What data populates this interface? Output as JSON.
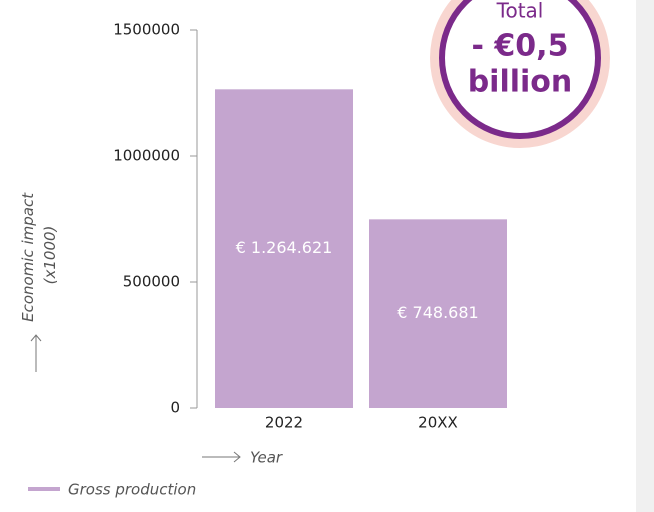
{
  "chart_data": {
    "type": "bar",
    "categories": [
      "2022",
      "20XX"
    ],
    "series": [
      {
        "name": "Gross production",
        "color": "#c4a5cf",
        "values": [
          1264621,
          748681
        ],
        "value_labels": [
          "€ 1.264.621",
          "€ 748.681"
        ]
      }
    ],
    "ylim": [
      0,
      1500000
    ],
    "yticks": [
      0,
      500000,
      1000000,
      1500000
    ],
    "ylabel": "Economic impact (x1000)",
    "xlabel": "Year",
    "annotation": [
      "Total",
      "- €0,5",
      "billion"
    ]
  }
}
